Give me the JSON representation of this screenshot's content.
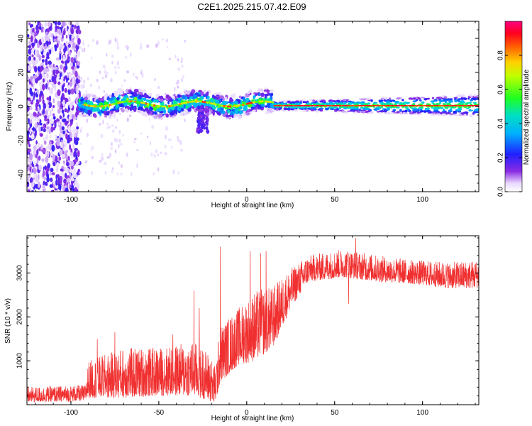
{
  "title": "C2E1.2025.215.07.42.E09",
  "chart_data": [
    {
      "type": "heatmap",
      "xlabel": "Height of straight line (km)",
      "ylabel": "Frequency (Hz)",
      "xlim": [
        -125,
        132
      ],
      "ylim": [
        -50,
        50
      ],
      "xticks": [
        -100,
        -50,
        0,
        50,
        100
      ],
      "yticks": [
        -40,
        -20,
        0,
        20,
        40
      ],
      "colorbar": {
        "label": "Normalized spectral amplitude",
        "range": [
          0,
          1
        ],
        "ticks": [
          0.0,
          0.2,
          0.4,
          0.6,
          0.8
        ]
      },
      "regions": [
        {
          "x": [
            -125,
            -95
          ],
          "description": "broadband scattered low-amplitude signal across all frequencies"
        },
        {
          "x": [
            -95,
            15
          ],
          "freq_center": 1.5,
          "freq_halfwidth": 4,
          "amplitude_peak": 0.7
        },
        {
          "x": [
            -28,
            -22
          ],
          "freq_range": [
            -15,
            0
          ],
          "amplitude_peak": 0.2
        },
        {
          "x": [
            15,
            132
          ],
          "freq_center": 0.5,
          "freq_halfwidth": 2,
          "amplitude_peak": 0.9
        }
      ]
    },
    {
      "type": "line",
      "xlabel": "Height of straight line (km)",
      "ylabel": "SNR (10 * v/v)",
      "xlim": [
        -125,
        132
      ],
      "ylim": [
        0,
        3850
      ],
      "xticks": [
        -100,
        -50,
        0,
        50,
        100
      ],
      "yticks": [
        1000,
        2000,
        3000
      ],
      "series_color": "#f03030",
      "envelope": [
        {
          "x": -125,
          "low": 50,
          "high": 400
        },
        {
          "x": -92,
          "low": 80,
          "high": 450
        },
        {
          "x": -90,
          "low": 150,
          "high": 1000
        },
        {
          "x": -70,
          "low": 150,
          "high": 1300
        },
        {
          "x": -50,
          "low": 200,
          "high": 1300
        },
        {
          "x": -30,
          "low": 200,
          "high": 1450
        },
        {
          "x": -22,
          "low": 100,
          "high": 1200
        },
        {
          "x": -18,
          "low": 0,
          "high": 900
        },
        {
          "x": -15,
          "low": 500,
          "high": 1800
        },
        {
          "x": -5,
          "low": 900,
          "high": 2200
        },
        {
          "x": 5,
          "low": 1000,
          "high": 2600
        },
        {
          "x": 15,
          "low": 1300,
          "high": 2700
        },
        {
          "x": 25,
          "low": 2200,
          "high": 3100
        },
        {
          "x": 35,
          "low": 2800,
          "high": 3400
        },
        {
          "x": 55,
          "low": 2900,
          "high": 3550
        },
        {
          "x": 75,
          "low": 2800,
          "high": 3400
        },
        {
          "x": 95,
          "low": 2750,
          "high": 3300
        },
        {
          "x": 115,
          "low": 2650,
          "high": 3250
        },
        {
          "x": 132,
          "low": 2650,
          "high": 3300
        }
      ],
      "spikes": [
        {
          "x": -85,
          "value": 1500
        },
        {
          "x": -75,
          "value": 1650
        },
        {
          "x": -42,
          "value": 1600
        },
        {
          "x": -30,
          "value": 2600
        },
        {
          "x": -27,
          "value": 2200
        },
        {
          "x": -15,
          "value": 3600
        },
        {
          "x": 2,
          "value": 3500
        },
        {
          "x": 8,
          "value": 3450
        },
        {
          "x": 11,
          "value": 3500
        },
        {
          "x": 62,
          "value": 3800
        },
        {
          "x": 58,
          "value": 2300
        }
      ]
    }
  ]
}
